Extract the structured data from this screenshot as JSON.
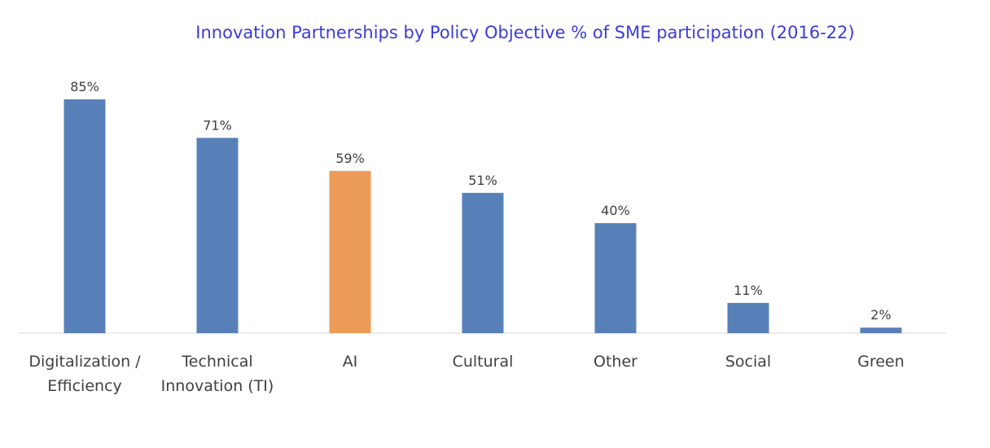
{
  "chart_data": {
    "type": "bar",
    "title": "Innovation Partnerships by Policy Objective % of SME participation (2016-22)",
    "categories": [
      [
        "Digitalization /",
        "Efficiency"
      ],
      [
        "Technical",
        "Innovation (TI)"
      ],
      [
        "AI"
      ],
      [
        "Cultural"
      ],
      [
        "Other"
      ],
      [
        "Social"
      ],
      [
        "Green"
      ]
    ],
    "values": [
      85,
      71,
      59,
      51,
      40,
      11,
      2
    ],
    "value_labels": [
      "85%",
      "71%",
      "59%",
      "51%",
      "40%",
      "11%",
      "2%"
    ],
    "bar_colors": [
      "#5880b8",
      "#5880b8",
      "#ec9b57",
      "#5880b8",
      "#5880b8",
      "#5880b8",
      "#5880b8"
    ],
    "title_color": "#3b3bdb",
    "xlabel": "",
    "ylabel": "",
    "ylim": [
      0,
      100
    ],
    "grid": false,
    "legend": "none"
  }
}
